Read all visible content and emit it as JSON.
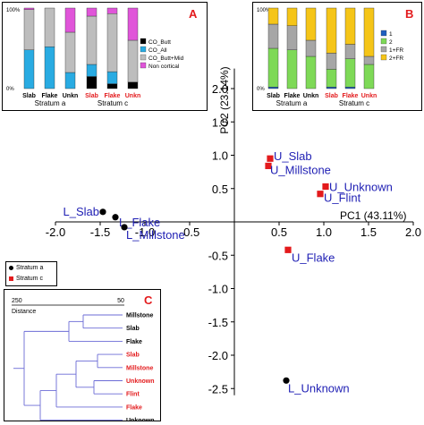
{
  "chart_data": [
    {
      "id": "main",
      "type": "scatter",
      "xlabel": "PC1 (43.11%)",
      "ylabel": "PC2 (23.14%)",
      "xlim": [
        -2.0,
        2.0
      ],
      "ylim": [
        -2.6,
        2.3
      ],
      "x_ticks": [
        "-2.0",
        "-1.5",
        "-1.0",
        "-0.5",
        "0.5",
        "1.0",
        "1.5",
        "2.0"
      ],
      "x_tick_values": [
        -2.0,
        -1.5,
        -1.0,
        -0.5,
        0.5,
        1.0,
        1.5,
        2.0
      ],
      "y_ticks": [
        "2.0",
        "1.5",
        "1.0",
        "0.5",
        "-0.5",
        "-1.0",
        "-1.5",
        "-2.0",
        "-2.5"
      ],
      "y_tick_values": [
        2.0,
        1.5,
        1.0,
        0.5,
        -0.5,
        -1.0,
        -1.5,
        -2.0,
        -2.5
      ],
      "series": [
        {
          "name": "Stratum a",
          "marker": "circle",
          "color": "#000000",
          "points": [
            {
              "label": "L_Slab",
              "x": -1.47,
              "y": 0.15
            },
            {
              "label": "L_Flake",
              "x": -1.33,
              "y": 0.07
            },
            {
              "label": "L_Millstone",
              "x": -1.23,
              "y": -0.08
            },
            {
              "label": "L_Unknown",
              "x": 0.58,
              "y": -2.38
            }
          ]
        },
        {
          "name": "Stratum c",
          "marker": "square",
          "color": "#e31a1c",
          "points": [
            {
              "label": "U_Slab",
              "x": 0.4,
              "y": 0.95
            },
            {
              "label": "U_Millstone",
              "x": 0.38,
              "y": 0.84
            },
            {
              "label": "U_Unknown",
              "x": 1.02,
              "y": 0.53
            },
            {
              "label": "U_Flint",
              "x": 0.96,
              "y": 0.42
            },
            {
              "label": "U_Flake",
              "x": 0.6,
              "y": -0.42
            }
          ]
        }
      ],
      "label_color": "#1f1fb4",
      "legend": "left"
    },
    {
      "id": "A",
      "panel_label": "A",
      "type": "bar",
      "stacked": true,
      "percent": true,
      "y_top_label": "100%",
      "y_bottom_label": "0%",
      "categories": [
        "Slab",
        "Flake",
        "Unkn",
        "Slab",
        "Flake",
        "Unkn"
      ],
      "category_colors": [
        "#000000",
        "#000000",
        "#000000",
        "#e31a1c",
        "#e31a1c",
        "#e31a1c"
      ],
      "groups": [
        "Stratum a",
        "Stratum c"
      ],
      "series": [
        {
          "name": "CO_Butt",
          "color": "#000000",
          "values": [
            0,
            0,
            0,
            15,
            6,
            8
          ]
        },
        {
          "name": "CO_All",
          "color": "#29abe2",
          "values": [
            48,
            52,
            20,
            15,
            15,
            0
          ]
        },
        {
          "name": "CO_Butt+Mid",
          "color": "#bdbdbd",
          "values": [
            50,
            48,
            50,
            60,
            72,
            52
          ]
        },
        {
          "name": "Non cortical",
          "color": "#e055d9",
          "values": [
            2,
            0,
            30,
            10,
            7,
            40
          ]
        }
      ]
    },
    {
      "id": "B",
      "panel_label": "B",
      "type": "bar",
      "stacked": true,
      "percent": true,
      "y_top_label": "100%",
      "y_bottom_label": "0%",
      "categories": [
        "Slab",
        "Flake",
        "Unkn",
        "Slab",
        "Flake",
        "Unkn"
      ],
      "category_colors": [
        "#000000",
        "#000000",
        "#000000",
        "#e31a1c",
        "#e31a1c",
        "#e31a1c"
      ],
      "groups": [
        "Stratum a",
        "Stratum c"
      ],
      "series": [
        {
          "name": "1",
          "color": "#1f5fbf",
          "values": [
            2,
            0,
            0,
            2,
            2,
            0
          ]
        },
        {
          "name": "2",
          "color": "#7ed957",
          "values": [
            48,
            48,
            40,
            22,
            35,
            30
          ]
        },
        {
          "name": "1+FR",
          "color": "#a6a6a6",
          "values": [
            30,
            30,
            20,
            20,
            18,
            10
          ]
        },
        {
          "name": "2+FR",
          "color": "#f5c518",
          "values": [
            20,
            22,
            40,
            56,
            45,
            60
          ]
        }
      ]
    },
    {
      "id": "C",
      "panel_label": "C",
      "type": "dendrogram",
      "axis_label": "Distance",
      "axis_left": "250",
      "axis_right": "50",
      "leaves": [
        {
          "label": "Millstone",
          "color": "#000000"
        },
        {
          "label": "Slab",
          "color": "#000000"
        },
        {
          "label": "Flake",
          "color": "#000000"
        },
        {
          "label": "Slab",
          "color": "#e31a1c"
        },
        {
          "label": "Millstone",
          "color": "#e31a1c"
        },
        {
          "label": "Unknown",
          "color": "#e31a1c"
        },
        {
          "label": "Flint",
          "color": "#e31a1c"
        },
        {
          "label": "Flake",
          "color": "#e31a1c"
        },
        {
          "label": "Unknown",
          "color": "#000000"
        }
      ],
      "line_color": "#6b6bd6"
    }
  ],
  "legend": {
    "items": [
      {
        "label": "Stratum a",
        "color": "#000000",
        "marker": "circle"
      },
      {
        "label": "Stratum c",
        "color": "#e31a1c",
        "marker": "square"
      }
    ]
  }
}
